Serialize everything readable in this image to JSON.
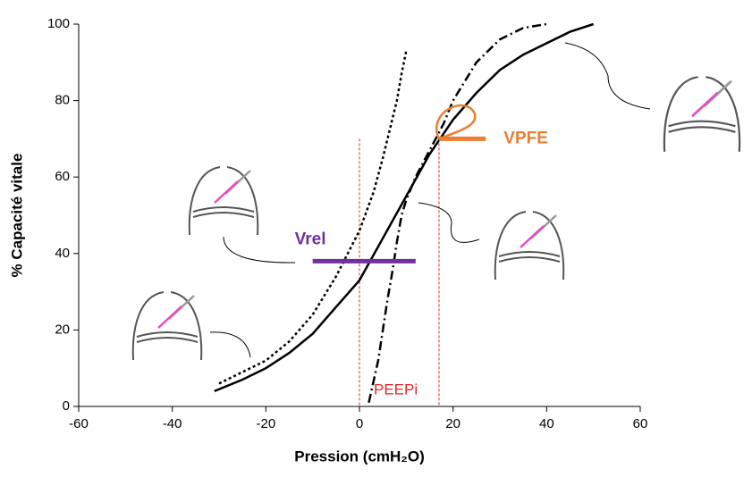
{
  "chart_data": {
    "type": "line",
    "x_label": "Pression (cmH₂O)",
    "y_label": "% Capacité vitale",
    "xlim": [
      -60,
      60
    ],
    "xticks": [
      -60,
      -40,
      -20,
      0,
      20,
      40,
      60
    ],
    "ylim": [
      0,
      100
    ],
    "yticks": [
      0,
      20,
      40,
      60,
      80,
      100
    ],
    "series": [
      {
        "color": "#000000",
        "dash": "3 3",
        "x": [
          -30,
          -25,
          -20,
          -15,
          -10,
          -5,
          0,
          3,
          5,
          7,
          8,
          9,
          10
        ],
        "values": [
          6,
          9,
          12,
          17,
          24,
          34,
          46,
          56,
          65,
          75,
          80,
          87,
          93
        ]
      },
      {
        "color": "#000000",
        "dash": "none",
        "x": [
          -31,
          -25,
          -20,
          -15,
          -10,
          -5,
          0,
          5,
          10,
          15,
          20,
          25,
          30,
          35,
          40,
          45,
          50
        ],
        "values": [
          4,
          7,
          10,
          14,
          19,
          26,
          33,
          44,
          55,
          66,
          75,
          82,
          88,
          92,
          95,
          98,
          100
        ]
      },
      {
        "color": "#000000",
        "dash": "10 4 2 4",
        "x": [
          2,
          4,
          5,
          6,
          7,
          8,
          9,
          10,
          12,
          15,
          18,
          20,
          23,
          25,
          30,
          35,
          40
        ],
        "values": [
          1,
          12,
          20,
          28,
          35,
          43,
          50,
          54,
          60,
          67,
          74,
          80,
          86,
          90,
          96,
          99,
          100
        ]
      }
    ],
    "hlines": [
      {
        "label": "Vrel",
        "color": "#7030a0",
        "x": [
          -10,
          12
        ],
        "y": 38
      },
      {
        "label": "VPFE",
        "color": "#ed7d31",
        "x": [
          17,
          27
        ],
        "y": 70
      }
    ],
    "vlines": {
      "label": "PEEPi",
      "color": "#e0262c",
      "x": [
        0,
        17
      ]
    }
  }
}
